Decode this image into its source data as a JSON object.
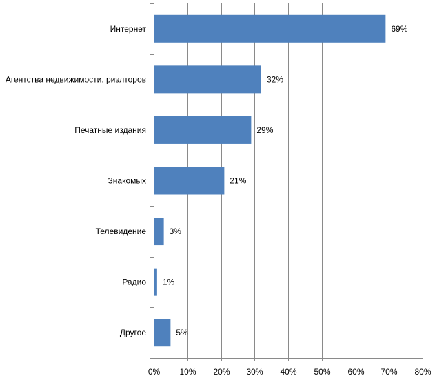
{
  "chart_data": {
    "type": "bar",
    "orientation": "horizontal",
    "categories": [
      "Интернет",
      "Агентства недвижимости, риэлторов",
      "Печатные издания",
      "Знакомых",
      "Телевидение",
      "Радио",
      "Другое"
    ],
    "values": [
      69,
      32,
      29,
      21,
      3,
      1,
      5
    ],
    "value_labels": [
      "69%",
      "32%",
      "29%",
      "21%",
      "3%",
      "1%",
      "5%"
    ],
    "x_ticks": [
      "0%",
      "10%",
      "20%",
      "30%",
      "40%",
      "50%",
      "60%",
      "70%",
      "80%"
    ],
    "xlim": [
      0,
      80
    ],
    "grid": true,
    "legend": "none",
    "bar_color": "#4f81bd"
  }
}
